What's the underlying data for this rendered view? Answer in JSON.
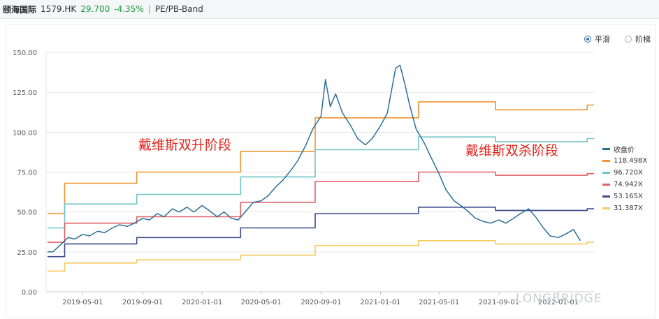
{
  "header": {
    "name": "颐海国际",
    "code": "1579.HK",
    "price": "29.700",
    "change": "-4.35%",
    "separator": "|",
    "tab": "PE/PB-Band"
  },
  "mode": {
    "smooth": "平滑",
    "step": "阶梯",
    "selected": "smooth"
  },
  "annotations": {
    "left": "戴维斯双升阶段",
    "right": "戴维斯双杀阶段"
  },
  "watermark": "LONGBRIDGE",
  "colors": {
    "close": "#2a6f97",
    "band118": "#f0942e",
    "band96": "#71c5c7",
    "band74": "#df6066",
    "band53": "#3c4a8a",
    "band31": "#f4cb5c",
    "annotation": "#e0251b",
    "up_down": "#1a9b3a"
  },
  "chart_data": {
    "type": "line",
    "y_ticks": [
      "150.00",
      "125.00",
      "100.00",
      "75.00",
      "50.00",
      "25.00",
      "0.00"
    ],
    "x_ticks": [
      "2019-05-01",
      "2019-09-01",
      "2020-01-01",
      "2020-05-01",
      "2020-09-01",
      "2021-01-01",
      "2021-05-01",
      "2021-09-01",
      "2022-01-01"
    ],
    "xlim": [
      "2019-02-15",
      "2022-03-15"
    ],
    "ylim": [
      0,
      150
    ],
    "grid": "horizontal",
    "legend_position": "right",
    "series": [
      {
        "name": "收盘价",
        "color_key": "close",
        "step": false,
        "points": [
          [
            "2019-02-18",
            25
          ],
          [
            "2019-03-01",
            25
          ],
          [
            "2019-03-15",
            29
          ],
          [
            "2019-04-01",
            34
          ],
          [
            "2019-04-15",
            33
          ],
          [
            "2019-05-01",
            36
          ],
          [
            "2019-05-15",
            35
          ],
          [
            "2019-06-01",
            38
          ],
          [
            "2019-06-15",
            37
          ],
          [
            "2019-07-01",
            40
          ],
          [
            "2019-07-15",
            42
          ],
          [
            "2019-08-01",
            41
          ],
          [
            "2019-08-15",
            43
          ],
          [
            "2019-09-01",
            46
          ],
          [
            "2019-09-15",
            45
          ],
          [
            "2019-10-01",
            49
          ],
          [
            "2019-10-15",
            47
          ],
          [
            "2019-11-01",
            52
          ],
          [
            "2019-11-15",
            50
          ],
          [
            "2019-12-01",
            53
          ],
          [
            "2019-12-15",
            50
          ],
          [
            "2020-01-01",
            54
          ],
          [
            "2020-01-15",
            51
          ],
          [
            "2020-02-01",
            47
          ],
          [
            "2020-02-15",
            50
          ],
          [
            "2020-03-01",
            46
          ],
          [
            "2020-03-15",
            45
          ],
          [
            "2020-04-01",
            51
          ],
          [
            "2020-04-15",
            56
          ],
          [
            "2020-05-01",
            57
          ],
          [
            "2020-05-15",
            60
          ],
          [
            "2020-06-01",
            66
          ],
          [
            "2020-06-15",
            70
          ],
          [
            "2020-07-01",
            76
          ],
          [
            "2020-07-15",
            82
          ],
          [
            "2020-08-01",
            92
          ],
          [
            "2020-08-15",
            102
          ],
          [
            "2020-09-01",
            110
          ],
          [
            "2020-09-10",
            133
          ],
          [
            "2020-09-20",
            116
          ],
          [
            "2020-10-01",
            124
          ],
          [
            "2020-10-15",
            112
          ],
          [
            "2020-11-01",
            104
          ],
          [
            "2020-11-15",
            96
          ],
          [
            "2020-12-01",
            92
          ],
          [
            "2020-12-15",
            96
          ],
          [
            "2021-01-01",
            104
          ],
          [
            "2021-01-15",
            112
          ],
          [
            "2021-02-01",
            140
          ],
          [
            "2021-02-10",
            142
          ],
          [
            "2021-02-20",
            130
          ],
          [
            "2021-03-01",
            118
          ],
          [
            "2021-03-15",
            102
          ],
          [
            "2021-04-01",
            93
          ],
          [
            "2021-04-15",
            84
          ],
          [
            "2021-05-01",
            74
          ],
          [
            "2021-05-15",
            64
          ],
          [
            "2021-06-01",
            57
          ],
          [
            "2021-06-15",
            54
          ],
          [
            "2021-07-01",
            50
          ],
          [
            "2021-07-15",
            46
          ],
          [
            "2021-08-01",
            44
          ],
          [
            "2021-08-15",
            43
          ],
          [
            "2021-09-01",
            45
          ],
          [
            "2021-09-15",
            43
          ],
          [
            "2021-10-01",
            46
          ],
          [
            "2021-10-15",
            49
          ],
          [
            "2021-11-01",
            52
          ],
          [
            "2021-11-15",
            47
          ],
          [
            "2021-12-01",
            40
          ],
          [
            "2021-12-15",
            35
          ],
          [
            "2022-01-01",
            34
          ],
          [
            "2022-01-15",
            36
          ],
          [
            "2022-02-01",
            39
          ],
          [
            "2022-02-15",
            32
          ]
        ]
      },
      {
        "name": "118.498X",
        "color_key": "band118",
        "step": true,
        "points": [
          [
            "2019-02-18",
            49
          ],
          [
            "2019-03-25",
            68
          ],
          [
            "2019-08-20",
            75
          ],
          [
            "2020-03-20",
            88
          ],
          [
            "2020-08-20",
            109
          ],
          [
            "2021-03-20",
            119
          ],
          [
            "2021-08-25",
            114
          ],
          [
            "2022-03-01",
            117
          ]
        ]
      },
      {
        "name": "96.720X",
        "color_key": "band96",
        "step": true,
        "points": [
          [
            "2019-02-18",
            40
          ],
          [
            "2019-03-25",
            55
          ],
          [
            "2019-08-20",
            61
          ],
          [
            "2020-03-20",
            72
          ],
          [
            "2020-08-20",
            89
          ],
          [
            "2021-03-20",
            97
          ],
          [
            "2021-08-25",
            94
          ],
          [
            "2022-03-01",
            96
          ]
        ]
      },
      {
        "name": "74.942X",
        "color_key": "band74",
        "step": true,
        "points": [
          [
            "2019-02-18",
            31
          ],
          [
            "2019-03-25",
            43
          ],
          [
            "2019-08-20",
            47
          ],
          [
            "2020-03-20",
            56
          ],
          [
            "2020-08-20",
            69
          ],
          [
            "2021-03-20",
            75
          ],
          [
            "2021-08-25",
            73
          ],
          [
            "2022-03-01",
            74
          ]
        ]
      },
      {
        "name": "53.165X",
        "color_key": "band53",
        "step": true,
        "points": [
          [
            "2019-02-18",
            22
          ],
          [
            "2019-03-25",
            30
          ],
          [
            "2019-08-20",
            34
          ],
          [
            "2020-03-20",
            40
          ],
          [
            "2020-08-20",
            49
          ],
          [
            "2021-03-20",
            53
          ],
          [
            "2021-08-25",
            51
          ],
          [
            "2022-03-01",
            52
          ]
        ]
      },
      {
        "name": "31.387X",
        "color_key": "band31",
        "step": true,
        "points": [
          [
            "2019-02-18",
            13
          ],
          [
            "2019-03-25",
            18
          ],
          [
            "2019-08-20",
            20
          ],
          [
            "2020-03-20",
            23
          ],
          [
            "2020-08-20",
            29
          ],
          [
            "2021-03-20",
            32
          ],
          [
            "2021-08-25",
            30
          ],
          [
            "2022-03-01",
            31
          ]
        ]
      }
    ]
  }
}
